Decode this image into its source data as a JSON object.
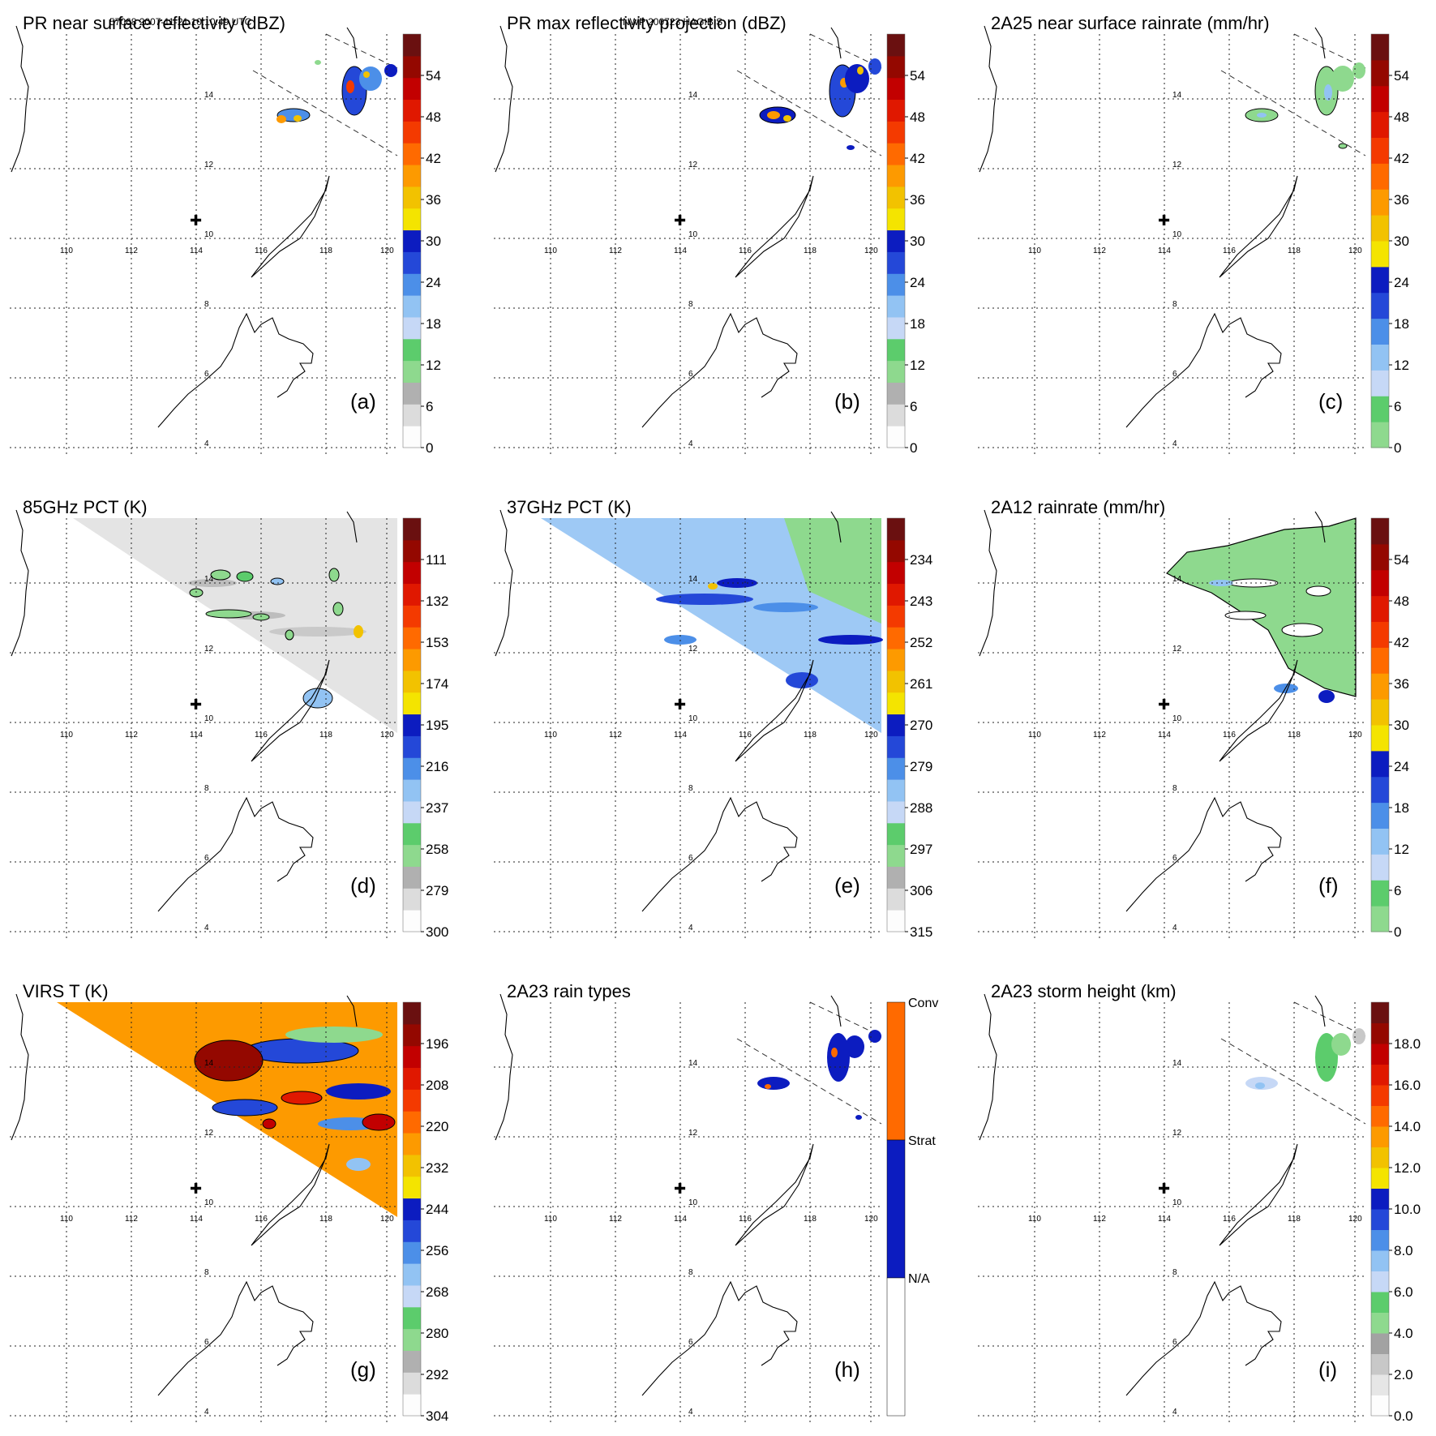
{
  "header": {
    "left": "57068 2007-11-21 10:10:49 UTC",
    "center": "NWP 200723 HAGIBIS"
  },
  "map": {
    "lon_ticks": [
      "110",
      "112",
      "114",
      "116",
      "118",
      "120"
    ],
    "lat_ticks": [
      "14",
      "12",
      "10",
      "8",
      "6",
      "4"
    ],
    "center_marker": "✚"
  },
  "chart_data": [
    {
      "id": "a",
      "type": "heatmap",
      "title": "PR near surface reflectivity (dBZ)",
      "label": "(a)",
      "colorbar": {
        "ticks": [
          "54",
          "48",
          "42",
          "36",
          "30",
          "24",
          "18",
          "12",
          "6",
          "0"
        ],
        "range": [
          0,
          60
        ]
      }
    },
    {
      "id": "b",
      "type": "heatmap",
      "title": "PR max reflectivity projection (dBZ)",
      "label": "(b)",
      "colorbar": {
        "ticks": [
          "54",
          "48",
          "42",
          "36",
          "30",
          "24",
          "18",
          "12",
          "6",
          "0"
        ],
        "range": [
          0,
          60
        ]
      }
    },
    {
      "id": "c",
      "type": "heatmap",
      "title": "2A25 near surface rainrate (mm/hr)",
      "label": "(c)",
      "colorbar": {
        "ticks": [
          "54",
          "48",
          "42",
          "36",
          "30",
          "24",
          "18",
          "12",
          "6",
          "0"
        ],
        "range": [
          0,
          60
        ]
      }
    },
    {
      "id": "d",
      "type": "heatmap",
      "title": "85GHz PCT (K)",
      "label": "(d)",
      "colorbar": {
        "ticks": [
          "111",
          "132",
          "153",
          "174",
          "195",
          "216",
          "237",
          "258",
          "279",
          "300"
        ],
        "range": [
          90,
          300
        ]
      }
    },
    {
      "id": "e",
      "type": "heatmap",
      "title": "37GHz PCT (K)",
      "label": "(e)",
      "colorbar": {
        "ticks": [
          "234",
          "243",
          "252",
          "261",
          "270",
          "279",
          "288",
          "297",
          "306",
          "315"
        ],
        "range": [
          225,
          315
        ]
      }
    },
    {
      "id": "f",
      "type": "heatmap",
      "title": "2A12 rainrate (mm/hr)",
      "label": "(f)",
      "colorbar": {
        "ticks": [
          "54",
          "48",
          "42",
          "36",
          "30",
          "24",
          "18",
          "12",
          "6",
          "0"
        ],
        "range": [
          0,
          60
        ]
      }
    },
    {
      "id": "g",
      "type": "heatmap",
      "title": "VIRS T (K)",
      "label": "(g)",
      "colorbar": {
        "ticks": [
          "196",
          "208",
          "220",
          "232",
          "244",
          "256",
          "268",
          "280",
          "292",
          "304"
        ],
        "range": [
          184,
          304
        ]
      }
    },
    {
      "id": "h",
      "type": "heatmap",
      "title": "2A23 rain types",
      "label": "(h)",
      "colorbar": {
        "categories": [
          "Conv",
          "Strat",
          "N/A"
        ]
      }
    },
    {
      "id": "i",
      "type": "heatmap",
      "title": "2A23 storm height (km)",
      "label": "(i)",
      "colorbar": {
        "ticks": [
          "18.0",
          "16.0",
          "14.0",
          "12.0",
          "10.0",
          "8.0",
          "6.0",
          "4.0",
          "2.0",
          "0.0"
        ],
        "range": [
          0,
          20
        ]
      }
    }
  ]
}
